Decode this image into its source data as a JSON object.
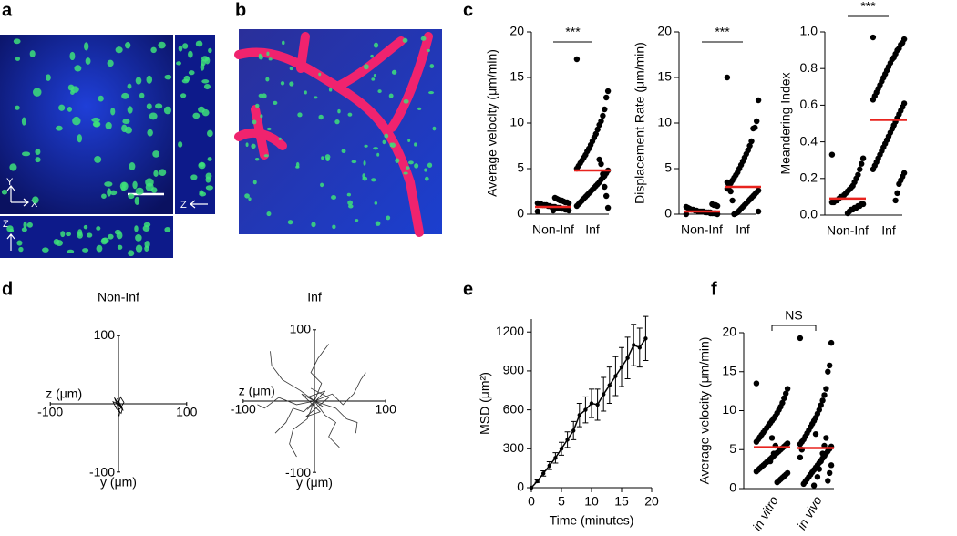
{
  "panel_labels": [
    "a",
    "b",
    "c",
    "d",
    "e",
    "f"
  ],
  "image_a_labels": [
    "Y",
    "X",
    "Z",
    "Z"
  ],
  "chart_data": [
    {
      "type": "dot",
      "ylabel": "Average velocity (μm/min)",
      "categories": [
        "Non-Inf",
        "Inf"
      ],
      "significance": "***",
      "color": "#000000",
      "mean_color": "#e8231e",
      "groups": [
        [
          0.3,
          0.4,
          0.5,
          0.5,
          0.6,
          0.6,
          0.7,
          0.7,
          0.7,
          0.8,
          0.8,
          0.8,
          0.9,
          0.9,
          1.0,
          1.0,
          1.0,
          1.1,
          1.1,
          1.2,
          1.2,
          1.3,
          1.3,
          1.4,
          1.5,
          1.5,
          1.6,
          1.7,
          1.8,
          0.4
        ],
        [
          17.0,
          13.5,
          12.8,
          11.5,
          10.8,
          10.2,
          9.8,
          9.3,
          8.8,
          8.4,
          8.0,
          7.6,
          7.2,
          6.9,
          6.5,
          6.2,
          5.9,
          5.6,
          5.3,
          5.0,
          4.8,
          4.5,
          4.2,
          4.0,
          3.8,
          3.5,
          3.3,
          3.1,
          2.9,
          2.7,
          2.5,
          2.3,
          2.1,
          1.9,
          1.7,
          1.5,
          1.3,
          1.1,
          0.9,
          0.7,
          2.0,
          3.0,
          4.4,
          5.5,
          6.0
        ]
      ],
      "means": [
        0.8,
        4.8
      ],
      "ylim": [
        0,
        20
      ],
      "yticks": [
        0,
        5,
        10,
        15,
        20
      ]
    },
    {
      "type": "dot",
      "ylabel": "Displacement Rate (μm/min)",
      "categories": [
        "Non-Inf",
        "Inf"
      ],
      "significance": "***",
      "color": "#000000",
      "mean_color": "#e8231e",
      "groups": [
        [
          0.0,
          0.0,
          0.1,
          0.1,
          0.1,
          0.2,
          0.2,
          0.2,
          0.2,
          0.3,
          0.3,
          0.3,
          0.3,
          0.4,
          0.4,
          0.5,
          0.5,
          0.6,
          0.7,
          0.8,
          0.9,
          1.0,
          1.0,
          1.1,
          0.1
        ],
        [
          15.0,
          12.5,
          10.2,
          9.5,
          9.4,
          8.0,
          7.5,
          7.0,
          6.6,
          6.2,
          5.8,
          5.4,
          5.0,
          4.6,
          4.3,
          4.0,
          3.7,
          3.4,
          3.1,
          2.8,
          2.6,
          2.4,
          2.2,
          2.0,
          1.8,
          1.6,
          1.4,
          1.2,
          1.0,
          0.8,
          0.6,
          0.4,
          0.2,
          0.1,
          0.0,
          1.5,
          2.5,
          3.0,
          3.5,
          0.3
        ]
      ],
      "means": [
        0.3,
        3.0
      ],
      "ylim": [
        0,
        20
      ],
      "yticks": [
        0,
        5,
        10,
        15,
        20
      ]
    },
    {
      "type": "dot",
      "ylabel": "Meandering Index",
      "categories": [
        "Non-Inf",
        "Inf"
      ],
      "significance": "***",
      "color": "#000000",
      "mean_color": "#e8231e",
      "groups": [
        [
          0.33,
          0.31,
          0.28,
          0.25,
          0.22,
          0.2,
          0.18,
          0.16,
          0.15,
          0.14,
          0.13,
          0.12,
          0.11,
          0.1,
          0.1,
          0.09,
          0.08,
          0.08,
          0.07,
          0.07,
          0.06,
          0.06,
          0.05,
          0.05,
          0.04,
          0.04,
          0.03,
          0.03,
          0.02,
          0.01
        ],
        [
          0.97,
          0.96,
          0.94,
          0.93,
          0.91,
          0.9,
          0.88,
          0.86,
          0.85,
          0.83,
          0.81,
          0.79,
          0.77,
          0.75,
          0.73,
          0.71,
          0.69,
          0.67,
          0.65,
          0.63,
          0.61,
          0.59,
          0.57,
          0.55,
          0.53,
          0.51,
          0.49,
          0.47,
          0.45,
          0.43,
          0.41,
          0.39,
          0.37,
          0.35,
          0.33,
          0.31,
          0.29,
          0.27,
          0.25,
          0.23,
          0.21,
          0.19,
          0.17,
          0.12,
          0.08
        ]
      ],
      "means": [
        0.09,
        0.52
      ],
      "ylim": [
        0,
        1.0
      ],
      "yticks": [
        {
          "value": 0,
          "label": "0.0"
        },
        {
          "value": 0.2,
          "label": "0.2"
        },
        {
          "value": 0.4,
          "label": "0.4"
        },
        {
          "value": 0.6,
          "label": "0.6"
        },
        {
          "value": 0.8,
          "label": "0.8"
        },
        {
          "value": 1.0,
          "label": "1.0"
        }
      ]
    },
    {
      "type": "trajectory",
      "title": "Non-Inf",
      "xlabel": "z (μm)",
      "ylabel": "y (μm)",
      "xlim": [
        -100,
        100
      ],
      "ylim": [
        -100,
        100
      ],
      "xticks": [
        -100,
        100
      ],
      "yticks": [
        -100,
        100
      ],
      "color": "#000000",
      "tracks": [
        {
          "x": [
            0,
            -4,
            3,
            -6,
            2,
            1
          ],
          "y": [
            0,
            6,
            -4,
            9,
            -12,
            -18
          ]
        },
        {
          "x": [
            0,
            5,
            -2,
            7,
            -3
          ],
          "y": [
            0,
            -5,
            8,
            -10,
            4
          ]
        },
        {
          "x": [
            0,
            -8,
            -3,
            4,
            6
          ],
          "y": [
            0,
            3,
            -7,
            -14,
            -6
          ]
        },
        {
          "x": [
            0,
            3,
            8,
            2,
            -5
          ],
          "y": [
            0,
            10,
            2,
            -8,
            -3
          ]
        }
      ]
    },
    {
      "type": "trajectory",
      "title": "Inf",
      "xlabel": "z (μm)",
      "ylabel": "y (μm)",
      "xlim": [
        -100,
        100
      ],
      "ylim": [
        -100,
        100
      ],
      "xticks": [
        -100,
        100
      ],
      "yticks": [
        -100,
        100
      ],
      "color": "#333333",
      "tracks": [
        {
          "x": [
            0,
            -20,
            -45,
            -60,
            -62
          ],
          "y": [
            0,
            15,
            30,
            50,
            70
          ]
        },
        {
          "x": [
            0,
            25,
            40,
            55,
            65,
            72
          ],
          "y": [
            0,
            10,
            -5,
            10,
            30,
            40
          ]
        },
        {
          "x": [
            0,
            -10,
            -30,
            -35,
            -25
          ],
          "y": [
            0,
            -25,
            -40,
            -60,
            -78
          ]
        },
        {
          "x": [
            0,
            15,
            30,
            20,
            35
          ],
          "y": [
            0,
            -20,
            -30,
            -50,
            -65
          ]
        },
        {
          "x": [
            0,
            -25,
            -50,
            -70,
            -80
          ],
          "y": [
            0,
            -5,
            5,
            -10,
            -5
          ]
        },
        {
          "x": [
            0,
            10,
            -5,
            5,
            20
          ],
          "y": [
            0,
            25,
            40,
            60,
            80
          ]
        },
        {
          "x": [
            0,
            30,
            45,
            60,
            58
          ],
          "y": [
            0,
            -10,
            -25,
            -30,
            -45
          ]
        },
        {
          "x": [
            0,
            -15,
            -30,
            -40,
            -55
          ],
          "y": [
            0,
            -15,
            -10,
            -30,
            -45
          ]
        },
        {
          "x": [
            0,
            12,
            -8,
            15,
            -10,
            5
          ],
          "y": [
            0,
            -8,
            6,
            14,
            -12,
            3
          ]
        },
        {
          "x": [
            0,
            -18,
            8,
            -12,
            20,
            -5
          ],
          "y": [
            0,
            10,
            -15,
            -22,
            5,
            18
          ]
        }
      ]
    },
    {
      "type": "line",
      "ylabel": "MSD (μm²)",
      "xlabel": "Time (minutes)",
      "color": "#000000",
      "x": [
        0,
        1,
        2,
        3,
        4,
        5,
        6,
        7,
        8,
        9,
        10,
        11,
        12,
        13,
        14,
        15,
        16,
        17,
        18,
        19
      ],
      "values": [
        0,
        50,
        110,
        170,
        230,
        300,
        370,
        440,
        560,
        600,
        650,
        640,
        720,
        790,
        860,
        930,
        1000,
        1100,
        1080,
        1150
      ],
      "errors": [
        0,
        10,
        20,
        30,
        40,
        50,
        60,
        70,
        90,
        100,
        110,
        120,
        130,
        140,
        150,
        150,
        160,
        160,
        150,
        170
      ],
      "xlim": [
        0,
        20
      ],
      "xticks": [
        0,
        5,
        10,
        15,
        20
      ],
      "ylim": [
        0,
        1300
      ],
      "yticks": [
        0,
        300,
        600,
        900,
        1200
      ]
    },
    {
      "type": "dot",
      "ylabel": "Average velocity (μm/min)",
      "categories": [
        "in vitro",
        "in vivo"
      ],
      "significance": "NS",
      "color": "#000000",
      "mean_color": "#e8231e",
      "groups": [
        [
          13.5,
          12.8,
          12.2,
          11.6,
          11.0,
          10.5,
          10.1,
          9.7,
          9.3,
          9.0,
          8.7,
          8.4,
          8.1,
          7.8,
          7.5,
          7.2,
          6.9,
          6.6,
          6.3,
          6.0,
          5.8,
          5.6,
          5.4,
          5.2,
          5.0,
          4.8,
          4.6,
          4.4,
          4.2,
          4.0,
          3.8,
          3.6,
          3.4,
          3.2,
          3.0,
          2.8,
          2.6,
          2.4,
          2.2,
          2.0,
          1.8,
          1.6,
          1.4,
          1.2,
          1.0,
          0.8,
          5.5,
          4.5,
          6.5,
          3.5
        ],
        [
          19.3,
          18.7,
          15.8,
          15.0,
          12.8,
          12.0,
          11.3,
          10.7,
          10.1,
          9.6,
          9.1,
          8.7,
          8.3,
          7.9,
          7.5,
          7.1,
          6.7,
          6.3,
          6.0,
          5.7,
          5.4,
          5.1,
          4.8,
          4.5,
          4.2,
          3.9,
          3.6,
          3.3,
          3.0,
          2.7,
          2.4,
          2.1,
          1.8,
          1.5,
          1.2,
          0.9,
          0.6,
          5.0,
          4.0,
          3.0,
          2.0,
          1.0,
          6.5,
          5.5,
          4.5,
          3.5,
          2.5,
          1.5,
          7.0,
          0.4
        ]
      ],
      "means": [
        5.3,
        5.2
      ],
      "ylim": [
        0,
        20
      ],
      "yticks": [
        0,
        5,
        10,
        15,
        20
      ]
    }
  ]
}
